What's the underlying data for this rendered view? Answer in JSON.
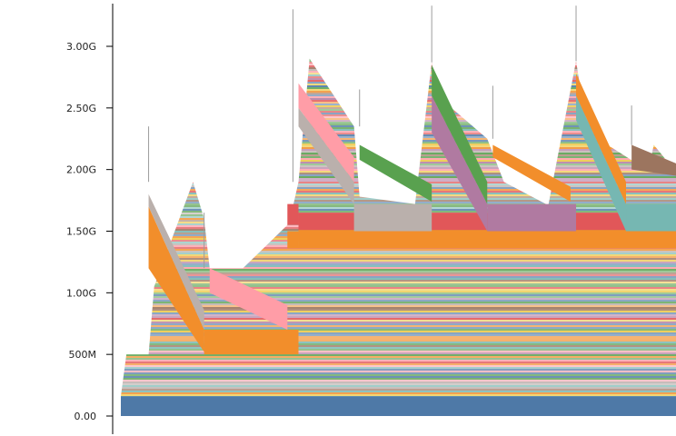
{
  "chart_data": {
    "type": "area",
    "stacked": true,
    "y_tick_labels": [
      "0.00",
      "500M",
      "1.00G",
      "1.50G",
      "2.00G",
      "2.50G",
      "3.00G"
    ],
    "y_tick_values": [
      0,
      500000000,
      1000000000,
      1500000000,
      2000000000,
      2500000000,
      3000000000
    ],
    "ylim": [
      0,
      3400000000
    ],
    "xlim": [
      0,
      100
    ],
    "grid": false,
    "legend": "none",
    "palette": [
      "#4e79a7",
      "#f28e2b",
      "#e15759",
      "#76b7b2",
      "#59a14f",
      "#edc948",
      "#b07aa1",
      "#ff9da7",
      "#9c755f",
      "#bab0ac"
    ],
    "highlight_series": [
      {
        "name_hidden": true,
        "color": "#4e79a7",
        "x": [
          0,
          100
        ],
        "values": [
          160000000,
          160000000
        ]
      },
      {
        "name_hidden": true,
        "color": "#f28e2b",
        "x": [
          0,
          12,
          15,
          16,
          27,
          32,
          100
        ],
        "values": [
          0,
          0,
          0,
          0,
          0,
          0,
          0
        ]
      }
    ],
    "total_x": [
      0,
      1,
      3,
      5,
      6,
      13,
      15,
      16,
      22,
      30,
      31,
      32,
      34,
      42,
      43,
      53,
      56,
      57,
      66,
      69,
      77,
      82,
      83,
      87,
      95,
      96,
      100
    ],
    "total_y": [
      160000000,
      500000000,
      500000000,
      500000000,
      1050000000,
      1900000000,
      1600000000,
      1200000000,
      1200000000,
      1550000000,
      1700000000,
      1900000000,
      2900000000,
      2350000000,
      1780000000,
      1720000000,
      2870000000,
      2600000000,
      2250000000,
      1900000000,
      1710000000,
      2880000000,
      2600000000,
      2220000000,
      1990000000,
      2200000000,
      1980000000
    ],
    "bands": [
      {
        "color": "#4e79a7",
        "x": [
          0,
          100
        ],
        "lower": [
          0,
          0
        ],
        "upper": [
          160000000,
          160000000
        ]
      },
      {
        "color": "#f28e2b",
        "x": [
          32,
          100
        ],
        "lower": [
          1360000000,
          1360000000
        ],
        "upper": [
          1510000000,
          1510000000
        ]
      },
      {
        "color": "#e15759",
        "x": [
          32,
          100
        ],
        "lower": [
          1510000000,
          1510000000
        ],
        "upper": [
          1650000000,
          1650000000
        ]
      },
      {
        "color": "#f28e2b",
        "x": [
          15,
          32
        ],
        "lower": [
          500000000,
          500000000
        ],
        "upper": [
          700000000,
          700000000
        ]
      },
      {
        "color": "#e15759",
        "x": [
          30,
          32
        ],
        "lower": [
          1550000000,
          1550000000
        ],
        "upper": [
          1720000000,
          1720000000
        ]
      },
      {
        "color": "#f28e2b",
        "x": [
          30,
          32
        ],
        "lower": [
          1360000000,
          1360000000
        ],
        "upper": [
          1500000000,
          1500000000
        ]
      },
      {
        "color": "#f28e2b",
        "x": [
          5,
          15
        ],
        "lower": [
          1200000000,
          520000000
        ],
        "upper": [
          1700000000,
          700000000
        ]
      },
      {
        "color": "#bab0ac",
        "x": [
          5,
          15
        ],
        "lower": [
          1700000000,
          700000000
        ],
        "upper": [
          1800000000,
          860000000
        ]
      },
      {
        "color": "#ff9da7",
        "x": [
          16,
          30
        ],
        "lower": [
          1000000000,
          700000000
        ],
        "upper": [
          1200000000,
          900000000
        ]
      },
      {
        "color": "#ff9da7",
        "x": [
          32,
          42
        ],
        "lower": [
          2500000000,
          1900000000
        ],
        "upper": [
          2700000000,
          2100000000
        ]
      },
      {
        "color": "#bab0ac",
        "x": [
          32,
          42
        ],
        "lower": [
          2350000000,
          1720000000
        ],
        "upper": [
          2500000000,
          1900000000
        ]
      },
      {
        "color": "#bab0ac",
        "x": [
          42,
          56
        ],
        "lower": [
          1500000000,
          1500000000
        ],
        "upper": [
          1720000000,
          1720000000
        ]
      },
      {
        "color": "#59a14f",
        "x": [
          43,
          56
        ],
        "lower": [
          2080000000,
          1740000000
        ],
        "upper": [
          2200000000,
          1880000000
        ]
      },
      {
        "color": "#b07aa1",
        "x": [
          56,
          66
        ],
        "lower": [
          2300000000,
          1500000000
        ],
        "upper": [
          2600000000,
          1720000000
        ]
      },
      {
        "color": "#b07aa1",
        "x": [
          66,
          82
        ],
        "lower": [
          1500000000,
          1500000000
        ],
        "upper": [
          1720000000,
          1720000000
        ]
      },
      {
        "color": "#59a14f",
        "x": [
          56,
          66
        ],
        "lower": [
          2600000000,
          1720000000
        ],
        "upper": [
          2850000000,
          1900000000
        ]
      },
      {
        "color": "#f28e2b",
        "x": [
          67,
          81
        ],
        "lower": [
          2100000000,
          1740000000
        ],
        "upper": [
          2200000000,
          1860000000
        ]
      },
      {
        "color": "#76b7b2",
        "x": [
          82,
          91
        ],
        "lower": [
          2400000000,
          1500000000
        ],
        "upper": [
          2600000000,
          1720000000
        ]
      },
      {
        "color": "#76b7b2",
        "x": [
          91,
          100
        ],
        "lower": [
          1500000000,
          1500000000
        ],
        "upper": [
          1720000000,
          1720000000
        ]
      },
      {
        "color": "#f28e2b",
        "x": [
          82,
          91
        ],
        "lower": [
          2600000000,
          1720000000
        ],
        "upper": [
          2780000000,
          1900000000
        ]
      },
      {
        "color": "#9c755f",
        "x": [
          92,
          100
        ],
        "lower": [
          2000000000,
          1950000000
        ],
        "upper": [
          2200000000,
          2050000000
        ]
      }
    ]
  }
}
